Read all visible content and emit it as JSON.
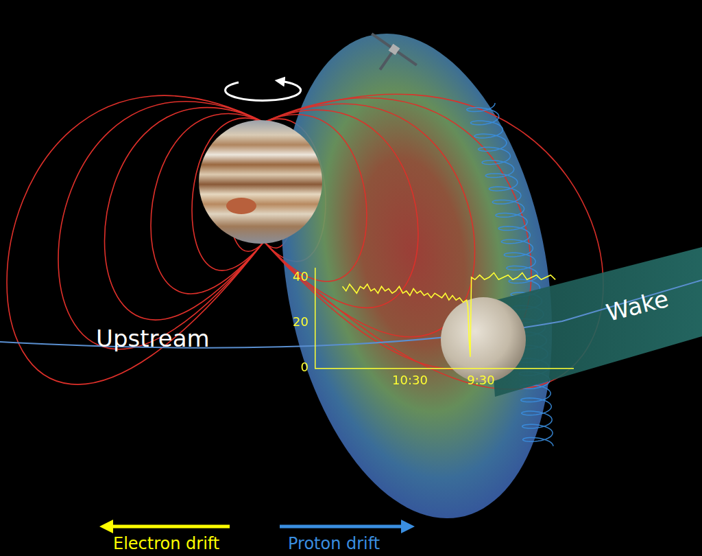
{
  "labels": {
    "upstream": "Upstream",
    "wake": "Wake",
    "electron_drift": "Electron drift",
    "proton_drift": "Proton drift"
  },
  "chart_data": {
    "type": "line",
    "color": "#ffff33",
    "grid": false,
    "x": [
      687,
      684,
      681,
      678,
      675,
      672,
      669,
      666,
      663,
      660,
      657,
      654,
      651,
      648,
      645,
      642,
      639,
      636,
      633,
      630,
      627,
      624,
      621,
      618,
      615,
      612,
      609,
      606,
      603,
      600,
      597,
      594,
      591,
      588,
      585,
      582,
      581,
      580,
      579,
      578,
      575,
      571,
      567,
      563,
      559,
      555,
      551,
      547,
      543,
      539,
      535,
      531,
      527,
      523,
      519,
      515,
      511,
      507
    ],
    "values": [
      36,
      34,
      37,
      35,
      33,
      36,
      35,
      37,
      34,
      35,
      33,
      36,
      34,
      35,
      33,
      34,
      36,
      33,
      34,
      32,
      35,
      33,
      34,
      32,
      33,
      31,
      33,
      32,
      31,
      33,
      30,
      32,
      30,
      31,
      29,
      30,
      27,
      13,
      5,
      40,
      39,
      41,
      39,
      40,
      42,
      39,
      40,
      41,
      39,
      40,
      42,
      39,
      40,
      41,
      39,
      40,
      41,
      39
    ],
    "xlim": [
      710,
      492
    ],
    "xticks": [
      {
        "value": 630,
        "label": "10:30"
      },
      {
        "value": 570,
        "label": "9:30"
      }
    ],
    "ylim": [
      0,
      44
    ],
    "yticks": [
      0,
      20,
      40
    ]
  }
}
